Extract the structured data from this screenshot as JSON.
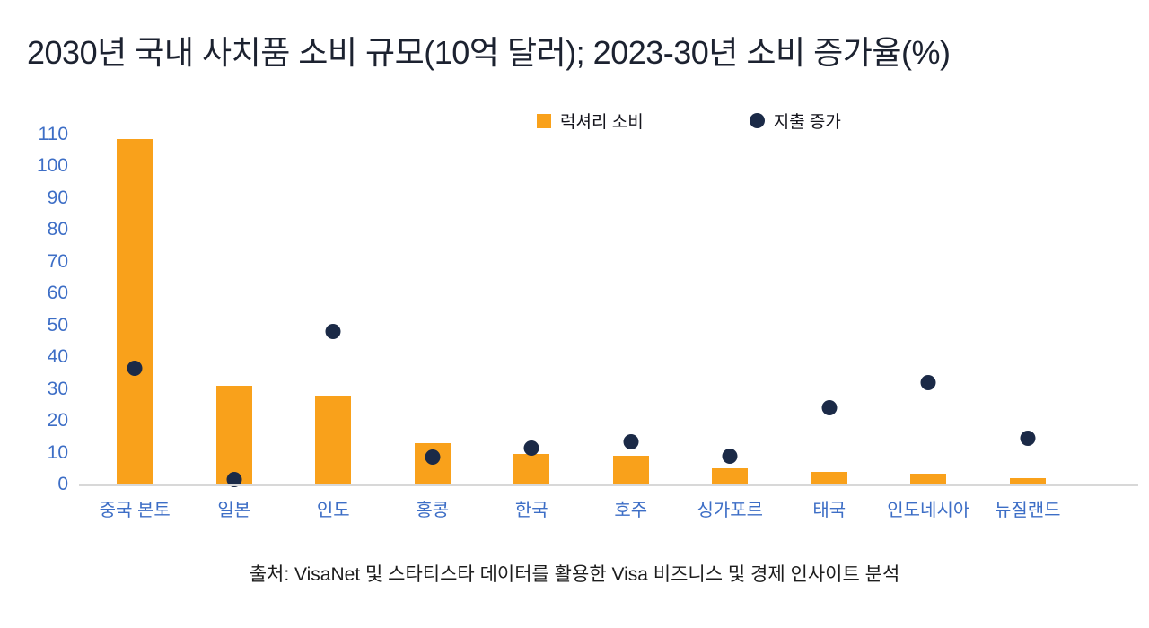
{
  "title": "2030년 국내 사치품 소비 규모(10억 달러); 2023-30년 소비 증가율(%)",
  "source": "출처: VisaNet 및 스타티스타 데이터를 활용한 Visa 비즈니스 및 경제 인사이트 분석",
  "legend": {
    "bars": "럭셔리 소비",
    "dots": "지출 증가"
  },
  "colors": {
    "bar": "#F9A11B",
    "dot": "#1B2A47",
    "axis_label": "#3D6EC6",
    "title": "#1C2230",
    "axis_line": "#D8D8D8"
  },
  "chart_data": {
    "type": "bar",
    "title": "2030년 국내 사치품 소비 규모(10억 달러); 2023-30년 소비 증가율(%)",
    "categories": [
      "중국 본토",
      "일본",
      "인도",
      "홍콩",
      "한국",
      "호주",
      "싱가포르",
      "태국",
      "인도네시아",
      "뉴질랜드"
    ],
    "series": [
      {
        "name": "럭셔리 소비",
        "type": "bar",
        "values": [
          108.5,
          31,
          28,
          13,
          9.5,
          9,
          5,
          4,
          3.5,
          2
        ]
      },
      {
        "name": "지출 증가",
        "type": "scatter",
        "values": [
          36.5,
          1.5,
          48,
          8.5,
          11.5,
          13.5,
          9,
          24,
          32,
          14.5
        ]
      }
    ],
    "xlabel": "",
    "ylabel": "",
    "ylim": [
      0,
      110
    ],
    "yticks": [
      0,
      10,
      20,
      30,
      40,
      50,
      60,
      70,
      80,
      90,
      100,
      110
    ],
    "grid": false,
    "legend_position": "top"
  }
}
